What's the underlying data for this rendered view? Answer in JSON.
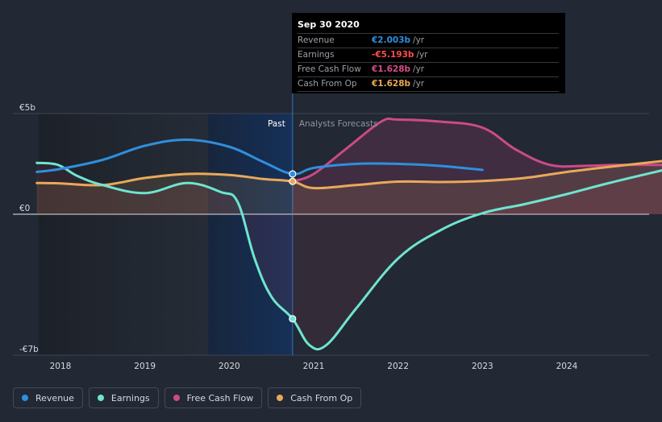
{
  "tooltip": {
    "date": "Sep 30 2020",
    "rows": [
      {
        "label": "Revenue",
        "value": "€2.003b",
        "unit": "/yr",
        "color": "#2f8fde"
      },
      {
        "label": "Earnings",
        "value": "-€5.193b",
        "unit": "/yr",
        "color": "#ff4d4d"
      },
      {
        "label": "Free Cash Flow",
        "value": "€1.628b",
        "unit": "/yr",
        "color": "#d94a8c"
      },
      {
        "label": "Cash From Op",
        "value": "€1.628b",
        "unit": "/yr",
        "color": "#e9a959"
      }
    ]
  },
  "labels": {
    "past": "Past",
    "forecast": "Analysts Forecasts"
  },
  "legend": [
    {
      "label": "Revenue",
      "color": "#2f8fde"
    },
    {
      "label": "Earnings",
      "color": "#6ee5d0"
    },
    {
      "label": "Free Cash Flow",
      "color": "#cc4a87"
    },
    {
      "label": "Cash From Op",
      "color": "#e9a959"
    }
  ],
  "chart_data": {
    "type": "line",
    "y_ticks": [
      {
        "value": 5,
        "label": "€5b"
      },
      {
        "value": 0,
        "label": "€0"
      },
      {
        "value": -7,
        "label": "-€7b"
      }
    ],
    "ylim": [
      -7,
      5
    ],
    "x_ticks": [
      {
        "value": 2018,
        "label": "2018"
      },
      {
        "value": 2019,
        "label": "2019"
      },
      {
        "value": 2020,
        "label": "2020"
      },
      {
        "value": 2021,
        "label": "2021"
      },
      {
        "value": 2022,
        "label": "2022"
      },
      {
        "value": 2023,
        "label": "2023"
      },
      {
        "value": 2024,
        "label": "2024"
      }
    ],
    "xlim": [
      2017.6,
      2025.15
    ],
    "past_end": 2020.75,
    "highlight_start": 2019.75,
    "series": [
      {
        "name": "Revenue",
        "color": "#2f8fde",
        "points": [
          [
            2017.72,
            2.1
          ],
          [
            2018.0,
            2.25
          ],
          [
            2018.5,
            2.7
          ],
          [
            2019.0,
            3.4
          ],
          [
            2019.5,
            3.7
          ],
          [
            2020.0,
            3.35
          ],
          [
            2020.4,
            2.6
          ],
          [
            2020.75,
            2.0
          ],
          [
            2021.0,
            2.3
          ],
          [
            2021.5,
            2.5
          ],
          [
            2022.0,
            2.5
          ],
          [
            2022.5,
            2.4
          ],
          [
            2023.0,
            2.2
          ]
        ]
      },
      {
        "name": "Earnings",
        "color": "#6ee5d0",
        "points": [
          [
            2017.72,
            2.55
          ],
          [
            2017.97,
            2.45
          ],
          [
            2018.2,
            1.9
          ],
          [
            2018.5,
            1.45
          ],
          [
            2019.0,
            1.05
          ],
          [
            2019.5,
            1.55
          ],
          [
            2019.9,
            1.1
          ],
          [
            2020.1,
            0.6
          ],
          [
            2020.3,
            -2.2
          ],
          [
            2020.5,
            -4.1
          ],
          [
            2020.75,
            -5.193
          ],
          [
            2020.95,
            -6.5
          ],
          [
            2021.15,
            -6.5
          ],
          [
            2021.5,
            -4.7
          ],
          [
            2022.0,
            -2.2
          ],
          [
            2022.5,
            -0.8
          ],
          [
            2023.0,
            0.05
          ],
          [
            2023.5,
            0.5
          ],
          [
            2024.0,
            1.0
          ],
          [
            2024.5,
            1.55
          ],
          [
            2025.15,
            2.2
          ]
        ]
      },
      {
        "name": "Free Cash Flow",
        "color": "#cc4a87",
        "points": [
          [
            2020.75,
            1.628
          ],
          [
            2021.0,
            2.0
          ],
          [
            2021.4,
            3.3
          ],
          [
            2021.8,
            4.6
          ],
          [
            2022.0,
            4.7
          ],
          [
            2022.5,
            4.6
          ],
          [
            2023.0,
            4.3
          ],
          [
            2023.4,
            3.2
          ],
          [
            2023.8,
            2.45
          ],
          [
            2024.2,
            2.4
          ],
          [
            2024.6,
            2.45
          ],
          [
            2025.15,
            2.45
          ]
        ]
      },
      {
        "name": "Cash From Op",
        "color": "#e9a959",
        "points": [
          [
            2017.72,
            1.55
          ],
          [
            2018.0,
            1.53
          ],
          [
            2018.5,
            1.45
          ],
          [
            2019.0,
            1.8
          ],
          [
            2019.5,
            2.0
          ],
          [
            2020.0,
            1.95
          ],
          [
            2020.4,
            1.75
          ],
          [
            2020.75,
            1.628
          ],
          [
            2021.0,
            1.3
          ],
          [
            2021.5,
            1.45
          ],
          [
            2022.0,
            1.62
          ],
          [
            2022.5,
            1.6
          ],
          [
            2023.0,
            1.65
          ],
          [
            2023.5,
            1.8
          ],
          [
            2024.0,
            2.1
          ],
          [
            2024.5,
            2.35
          ],
          [
            2025.15,
            2.65
          ]
        ]
      }
    ]
  }
}
